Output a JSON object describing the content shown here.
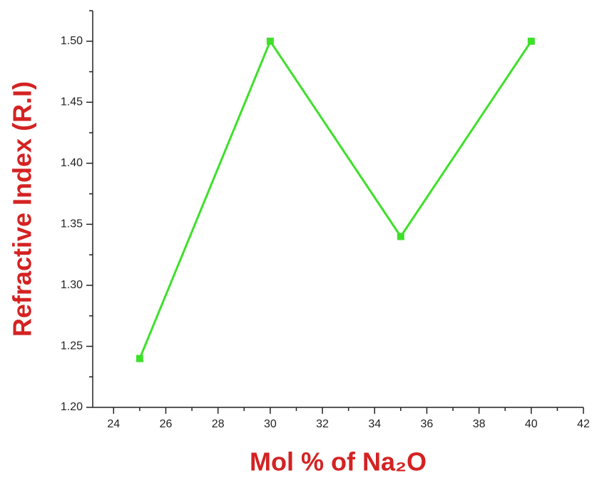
{
  "chart_data": {
    "type": "line",
    "x_label": "Mol % of Na₂O",
    "y_label": "Refractive Index (R.I)",
    "x": [
      25,
      30,
      35,
      40
    ],
    "series": [
      {
        "color": "#3ee02a",
        "values": [
          1.24,
          1.5,
          1.34,
          1.5
        ]
      }
    ],
    "xlim": [
      23.2,
      42
    ],
    "xticks": [
      24,
      26,
      28,
      30,
      32,
      34,
      36,
      38,
      40,
      42
    ],
    "ylim": [
      1.2,
      1.525
    ],
    "yticks": [
      {
        "value": 1.2,
        "label": "1.20"
      },
      {
        "value": 1.25,
        "label": "1.25"
      },
      {
        "value": 1.3,
        "label": "1.30"
      },
      {
        "value": 1.35,
        "label": "1.35"
      },
      {
        "value": 1.4,
        "label": "1.40"
      },
      {
        "value": 1.45,
        "label": "1.45"
      },
      {
        "value": 1.5,
        "label": "1.50"
      }
    ],
    "grid": false
  }
}
